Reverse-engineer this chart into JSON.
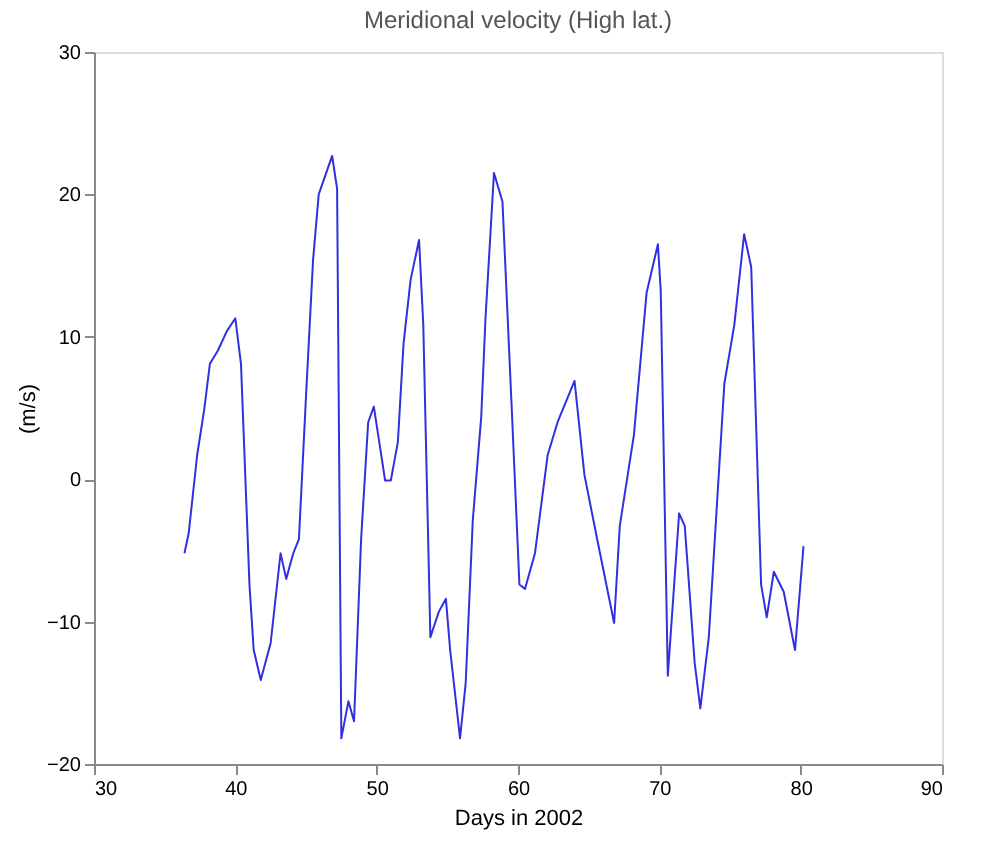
{
  "chart_data": {
    "type": "line",
    "title": "Meridional velocity (High lat.)",
    "xlabel": "Days in 2002",
    "ylabel": "(m/s)",
    "xlim": [
      30,
      90
    ],
    "xticks": [
      30,
      40,
      50,
      60,
      70,
      80,
      90
    ],
    "ylim": [
      -20,
      30
    ],
    "yticks": [
      -20,
      -10,
      0,
      10,
      20,
      30
    ],
    "grid": false,
    "marker": "none",
    "line_style": "solid",
    "series": [
      {
        "color": "#3030e0",
        "x": [
          36.4,
          36.7,
          37.3,
          37.8,
          38.2,
          38.75,
          39.4,
          40.0,
          40.4,
          41.0,
          41.3,
          41.8,
          42.5,
          43.2,
          43.6,
          44.1,
          44.5,
          45.0,
          45.5,
          45.9,
          46.85,
          47.2,
          47.5,
          48.0,
          48.4,
          48.9,
          49.4,
          49.8,
          50.6,
          51.0,
          51.5,
          51.9,
          52.4,
          52.7,
          53.0,
          53.3,
          53.8,
          54.4,
          54.9,
          55.2,
          55.9,
          56.3,
          56.8,
          57.4,
          57.7,
          58.3,
          58.9,
          59.6,
          60.1,
          60.5,
          61.2,
          62.1,
          62.8,
          64.0,
          64.7,
          65.6,
          66.8,
          67.2,
          68.2,
          69.1,
          69.9,
          70.1,
          70.6,
          71.4,
          71.8,
          72.5,
          72.9,
          73.5,
          74.6,
          75.3,
          76.0,
          76.5,
          77.2,
          77.6,
          78.1,
          78.8,
          79.6,
          80.2
        ],
        "values": [
          -5.2,
          -3.8,
          1.7,
          4.9,
          8.1,
          9.0,
          10.4,
          11.3,
          8.1,
          -7.4,
          -12,
          -14.1,
          -11.5,
          -5.2,
          -7,
          -5.2,
          -4.2,
          5.8,
          15.4,
          20,
          22.7,
          20.4,
          -18.2,
          -15.6,
          -17,
          -4.2,
          4.0,
          5.1,
          -0.1,
          -0.1,
          2.6,
          9.5,
          14,
          15.4,
          16.8,
          10.8,
          -11.1,
          -9.3,
          -8.4,
          -12,
          -18.2,
          -14.3,
          -2.9,
          4.4,
          11.3,
          21.5,
          19.5,
          4.0,
          -7.4,
          -7.7,
          -5.2,
          1.7,
          4.0,
          6.9,
          0.3,
          -4.2,
          -10.1,
          -3.3,
          3.1,
          13.1,
          16.5,
          13.2,
          -13.8,
          -2.4,
          -3.3,
          -12.9,
          -16.1,
          -11.1,
          6.7,
          10.8,
          17.2,
          14.9,
          -7.4,
          -9.7,
          -6.5,
          -7.9,
          -12,
          -4.7
        ]
      }
    ]
  }
}
